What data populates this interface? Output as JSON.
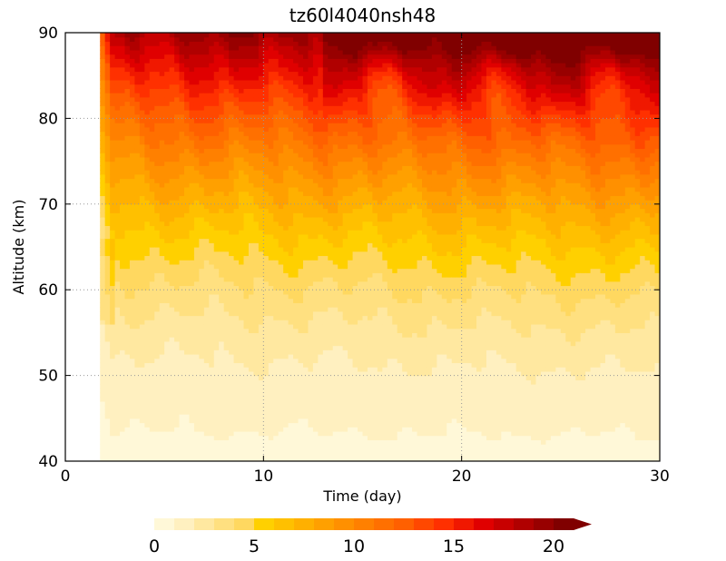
{
  "chart_data": {
    "type": "heatmap",
    "title": "tz60l4040nsh48",
    "xlabel": "Time (day)",
    "ylabel": "Altitude (km)",
    "xlim": [
      0,
      30
    ],
    "ylim": [
      40,
      90
    ],
    "x_ticks": [
      "0",
      "10",
      "20",
      "30"
    ],
    "y_ticks": [
      "40",
      "50",
      "60",
      "70",
      "80",
      "90"
    ],
    "grid": "dotted",
    "data_start_day": 1.8,
    "z_field_summary": [
      {
        "altitude_band": "40-50 km",
        "approx_value": "0-2"
      },
      {
        "altitude_band": "50-60 km",
        "approx_value": "2-5"
      },
      {
        "altitude_band": "60-70 km",
        "approx_value": "5-8"
      },
      {
        "altitude_band": "70-80 km",
        "approx_value": "6-11"
      },
      {
        "altitude_band": "80-90 km",
        "approx_value": "9-20"
      }
    ],
    "colorbar": {
      "ticks": [
        "0",
        "5",
        "10",
        "15",
        "20"
      ],
      "min": 0,
      "max": 21,
      "step": 1,
      "extend": "max",
      "colors": [
        "#fff8d8",
        "#fff0c0",
        "#ffe8a0",
        "#ffe080",
        "#ffd860",
        "#ffd000",
        "#ffc000",
        "#ffb000",
        "#ffa000",
        "#ff9000",
        "#ff8000",
        "#ff7000",
        "#ff6000",
        "#ff4800",
        "#ff3000",
        "#f01800",
        "#e00000",
        "#c80000",
        "#b00000",
        "#980000",
        "#800000"
      ]
    }
  }
}
